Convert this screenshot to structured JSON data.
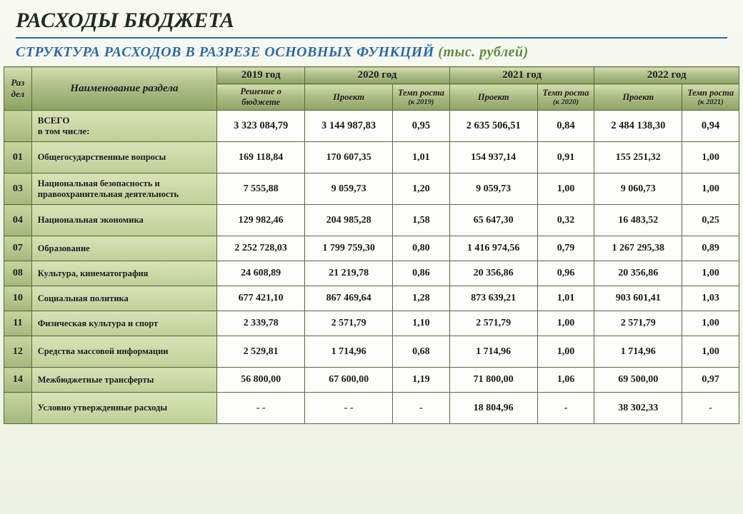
{
  "title": "РАСХОДЫ БЮДЖЕТА",
  "subtitle_main": "СТРУКТУРА РАСХОДОВ В РАЗРЕЗЕ ОСНОВНЫХ ФУНКЦИЙ",
  "subtitle_unit": "(тыс. рублей)",
  "headers": {
    "raz": "Раз дел",
    "name": "Наименование раздела",
    "y2019": "2019  год",
    "y2020": "2020 год",
    "y2021": "2021 год",
    "y2022": "2022 год",
    "resh": "Решение о бюджете",
    "proj": "Проект",
    "temp": "Темп роста",
    "k2019": "(к 2019)",
    "k2020": "(к 2020)",
    "k2021": "(к 2021)"
  },
  "rows": [
    {
      "code": "",
      "name": "ВСЕГО\nв том числе:",
      "v": [
        "3 323 084,79",
        "3 144 987,83",
        "0,95",
        "2 635 506,51",
        "0,84",
        "2 484 138,30",
        "0,94"
      ]
    },
    {
      "code": "01",
      "name": "Общегосударственные вопросы",
      "v": [
        "169 118,84",
        "170 607,35",
        "1,01",
        "154 937,14",
        "0,91",
        "155 251,32",
        "1,00"
      ]
    },
    {
      "code": "03",
      "name": "Национальная безопасность и правоохранительная деятельность",
      "v": [
        "7 555,88",
        "9 059,73",
        "1,20",
        "9 059,73",
        "1,00",
        "9 060,73",
        "1,00"
      ]
    },
    {
      "code": "04",
      "name": "Национальная экономика",
      "v": [
        "129 982,46",
        "204 985,28",
        "1,58",
        "65 647,30",
        "0,32",
        "16 483,52",
        "0,25"
      ]
    },
    {
      "code": "07",
      "name": "Образование",
      "v": [
        "2 252 728,03",
        "1 799 759,30",
        "0,80",
        "1 416 974,56",
        "0,79",
        "1 267 295,38",
        "0,89"
      ]
    },
    {
      "code": "08",
      "name": "Культура, кинематография",
      "v": [
        "24 608,89",
        "21 219,78",
        "0,86",
        "20 356,86",
        "0,96",
        "20 356,86",
        "1,00"
      ]
    },
    {
      "code": "10",
      "name": "Социальная политика",
      "v": [
        "677 421,10",
        "867 469,64",
        "1,28",
        "873 639,21",
        "1,01",
        "903 601,41",
        "1,03"
      ]
    },
    {
      "code": "11",
      "name": "Физическая культура и спорт",
      "v": [
        "2 339,78",
        "2 571,79",
        "1,10",
        "2 571,79",
        "1,00",
        "2 571,79",
        "1,00"
      ]
    },
    {
      "code": "12",
      "name": "Средства массовой информации",
      "v": [
        "2 529,81",
        "1 714,96",
        "0,68",
        "1 714,96",
        "1,00",
        "1 714,96",
        "1,00"
      ]
    },
    {
      "code": "14",
      "name": "Межбюджетные трансферты",
      "v": [
        "56 800,00",
        "67 600,00",
        "1,19",
        "71 800,00",
        "1,06",
        "69 500,00",
        "0,97"
      ]
    },
    {
      "code": "",
      "name": "Условно утвержденные расходы",
      "v": [
        "- -",
        "- -",
        "-",
        "18 804,96",
        "-",
        "38 302,33",
        "-"
      ]
    }
  ]
}
